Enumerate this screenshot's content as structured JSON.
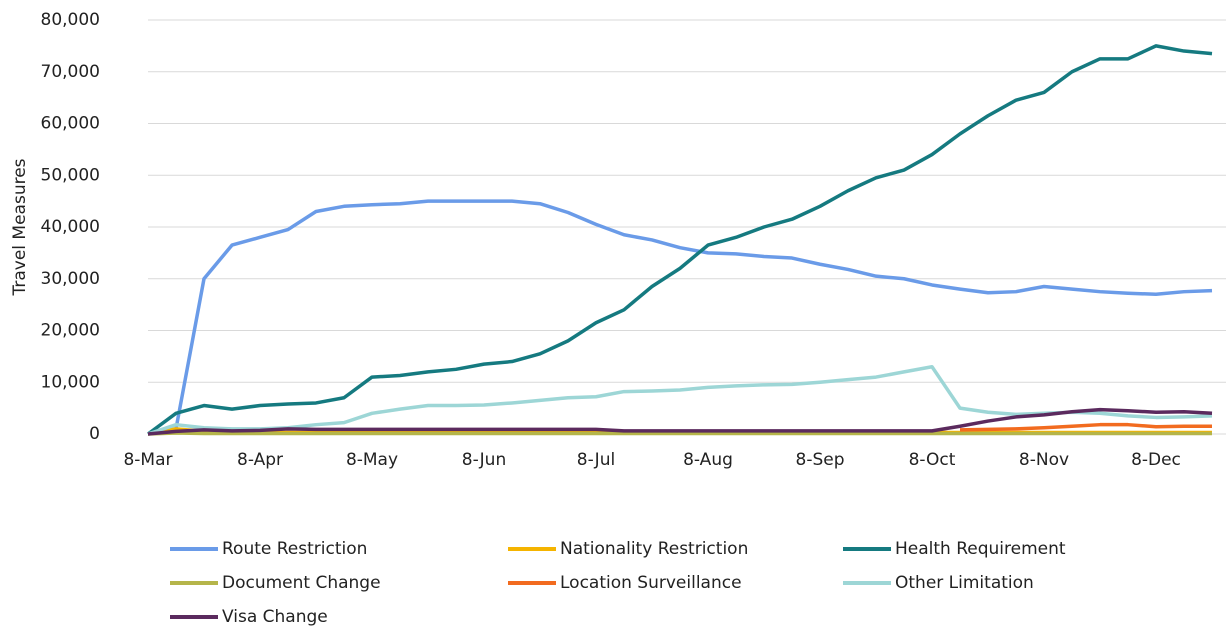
{
  "chart_data": {
    "type": "line",
    "y_label": "Travel Measures",
    "categories": [
      "8-Mar",
      null,
      null,
      null,
      "8-Apr",
      null,
      null,
      null,
      "8-May",
      null,
      null,
      null,
      "8-Jun",
      null,
      null,
      null,
      "8-Jul",
      null,
      null,
      null,
      "8-Aug",
      null,
      null,
      null,
      "8-Sep",
      null,
      null,
      null,
      "8-Oct",
      null,
      null,
      null,
      "8-Nov",
      null,
      null,
      null,
      "8-Dec",
      null,
      null
    ],
    "ylim": [
      0,
      80000
    ],
    "yticks": [
      0,
      {
        "value": 10000,
        "label": "10,000"
      },
      {
        "value": 20000,
        "label": "20,000"
      },
      {
        "value": 30000,
        "label": "30,000"
      },
      {
        "value": 40000,
        "label": "40,000"
      },
      {
        "value": 50000,
        "label": "50,000"
      },
      {
        "value": 60000,
        "label": "60,000"
      },
      {
        "value": 70000,
        "label": "70,000"
      },
      {
        "value": 80000,
        "label": "80,000"
      }
    ],
    "grid": true,
    "legend": "bottom",
    "series": [
      {
        "name": "Route Restriction",
        "color": "#6a9be8",
        "values": [
          0,
          1000,
          30000,
          36500,
          38000,
          39500,
          43000,
          44000,
          44300,
          44500,
          45000,
          45000,
          45000,
          45000,
          44500,
          42800,
          40500,
          38500,
          37500,
          36000,
          35000,
          34800,
          34300,
          34000,
          32800,
          31800,
          30500,
          30000,
          28800,
          28000,
          27300,
          27500,
          28500,
          28000,
          27500,
          27200,
          27000,
          27500,
          27700
        ]
      },
      {
        "name": "Nationality Restriction",
        "color": "#f5b400",
        "values": [
          0,
          1000,
          500,
          300,
          300,
          300,
          300,
          300,
          300,
          300,
          300,
          300,
          300,
          300,
          300,
          300,
          300,
          300,
          300,
          300,
          300,
          300,
          300,
          300,
          300,
          300,
          300,
          300,
          300,
          300,
          300,
          300,
          300,
          300,
          300,
          300,
          300,
          300,
          300
        ]
      },
      {
        "name": "Health Requirement",
        "color": "#157a80",
        "values": [
          0,
          4000,
          5500,
          4800,
          5500,
          5800,
          6000,
          7000,
          11000,
          11300,
          12000,
          12500,
          13500,
          14000,
          15500,
          18000,
          21500,
          24000,
          28500,
          32000,
          36500,
          38000,
          40000,
          41500,
          44000,
          47000,
          49500,
          51000,
          54000,
          58000,
          61500,
          64500,
          66000,
          70000,
          72500,
          72500,
          75000,
          74000,
          73500
        ]
      },
      {
        "name": "Document Change",
        "color": "#b5b54a",
        "values": [
          0,
          200,
          100,
          100,
          100,
          100,
          100,
          100,
          100,
          100,
          100,
          100,
          100,
          100,
          100,
          100,
          100,
          100,
          100,
          100,
          100,
          100,
          100,
          100,
          100,
          100,
          100,
          100,
          100,
          100,
          100,
          100,
          100,
          100,
          100,
          100,
          100,
          100,
          100
        ]
      },
      {
        "name": "Location Surveillance",
        "color": "#f26b1f",
        "values": [
          null,
          null,
          null,
          null,
          null,
          null,
          null,
          null,
          null,
          null,
          null,
          null,
          null,
          null,
          null,
          null,
          null,
          null,
          null,
          null,
          null,
          null,
          null,
          null,
          null,
          null,
          null,
          null,
          null,
          800,
          900,
          1000,
          1200,
          1500,
          1800,
          1800,
          1400,
          1500,
          1500
        ]
      },
      {
        "name": "Other Limitation",
        "color": "#9dd6d6",
        "values": [
          0,
          1800,
          1200,
          1000,
          1000,
          1200,
          1800,
          2200,
          4000,
          4800,
          5500,
          5500,
          5600,
          6000,
          6500,
          7000,
          7200,
          8200,
          8300,
          8500,
          9000,
          9300,
          9500,
          9600,
          10000,
          10500,
          11000,
          12000,
          13000,
          5000,
          4200,
          3800,
          4000,
          4200,
          4000,
          3500,
          3200,
          3300,
          3500
        ]
      },
      {
        "name": "Visa Change",
        "color": "#5b2a5e",
        "values": [
          0,
          500,
          800,
          600,
          700,
          1000,
          900,
          900,
          900,
          900,
          900,
          900,
          900,
          900,
          900,
          900,
          900,
          600,
          600,
          600,
          600,
          600,
          600,
          600,
          600,
          600,
          600,
          600,
          600,
          1500,
          2500,
          3300,
          3700,
          4300,
          4700,
          4500,
          4200,
          4300,
          4000
        ]
      }
    ]
  }
}
